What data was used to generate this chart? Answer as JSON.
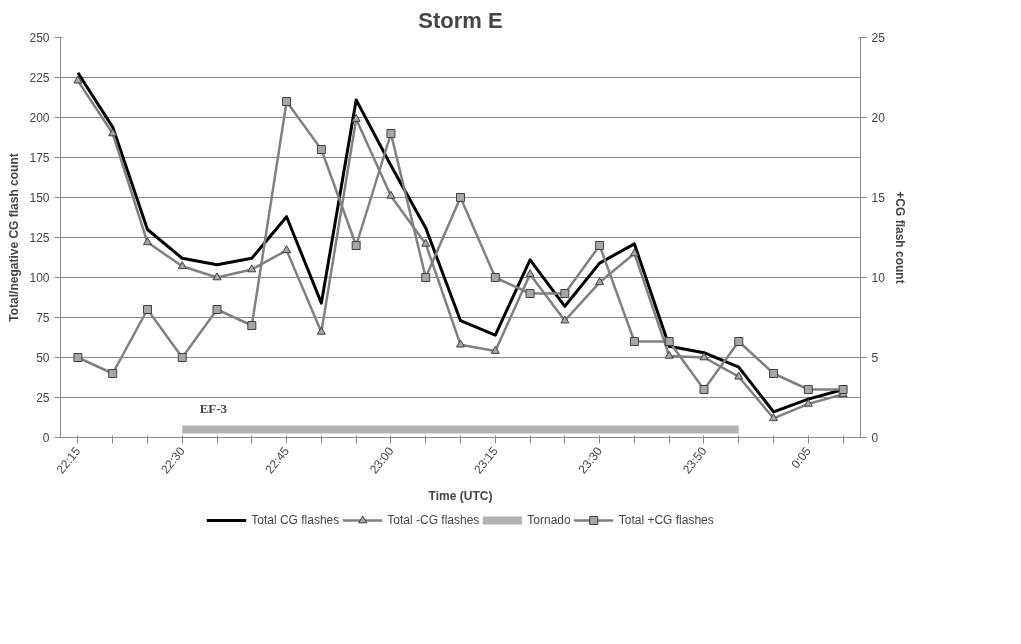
{
  "chart_data": {
    "type": "line",
    "title": "Storm E",
    "xlabel": "Time (UTC)",
    "ylabel": "Total/negative CG flash count",
    "y2label": "+CG flash count",
    "categories": [
      "22:15",
      null,
      null,
      "22:30",
      null,
      null,
      "22:45",
      null,
      null,
      "23:00",
      null,
      null,
      "23:15",
      null,
      null,
      "23:30",
      null,
      null,
      "23:50",
      null,
      null,
      "0:05",
      null
    ],
    "series": [
      {
        "name": "Total CG flashes",
        "color": "#000000",
        "marker": "none",
        "values": [
          228,
          194,
          130,
          112,
          108,
          112,
          138,
          84,
          211,
          170,
          131,
          73,
          64,
          111,
          82,
          109,
          121,
          57,
          53,
          44,
          16,
          24,
          30
        ]
      },
      {
        "name": "Total -CG flashes",
        "color": "#808080",
        "marker": "triangle",
        "values": [
          223,
          190,
          122,
          107,
          100,
          105,
          117,
          66,
          199,
          151,
          121,
          58,
          54,
          102,
          73,
          97,
          115,
          51,
          50,
          38,
          12,
          21,
          27
        ]
      },
      {
        "name": "Tornado",
        "color": "#b3b3b3",
        "marker": "none",
        "values": [
          null,
          null,
          null,
          5,
          5,
          5,
          5,
          5,
          5,
          5,
          5,
          5,
          5,
          5,
          5,
          5,
          5,
          5,
          5,
          5,
          null,
          null,
          null
        ]
      },
      {
        "name": "Total +CG flashes",
        "color": "#808080",
        "marker": "square",
        "axis": "y2",
        "values": [
          5,
          4,
          8,
          5,
          8,
          7,
          21,
          18,
          12,
          19,
          10,
          15,
          10,
          9,
          9,
          12,
          6,
          6,
          3,
          6,
          4,
          3,
          3
        ]
      }
    ],
    "annotations": [
      "EF-3"
    ],
    "ylim": [
      0,
      250
    ],
    "yticks": [
      0,
      25,
      50,
      75,
      100,
      125,
      150,
      175,
      200,
      225,
      250
    ],
    "y2lim": [
      0,
      25
    ],
    "y2ticks": [
      0,
      5,
      10,
      15,
      20,
      25
    ],
    "grid": "y",
    "legend": "bottom"
  }
}
